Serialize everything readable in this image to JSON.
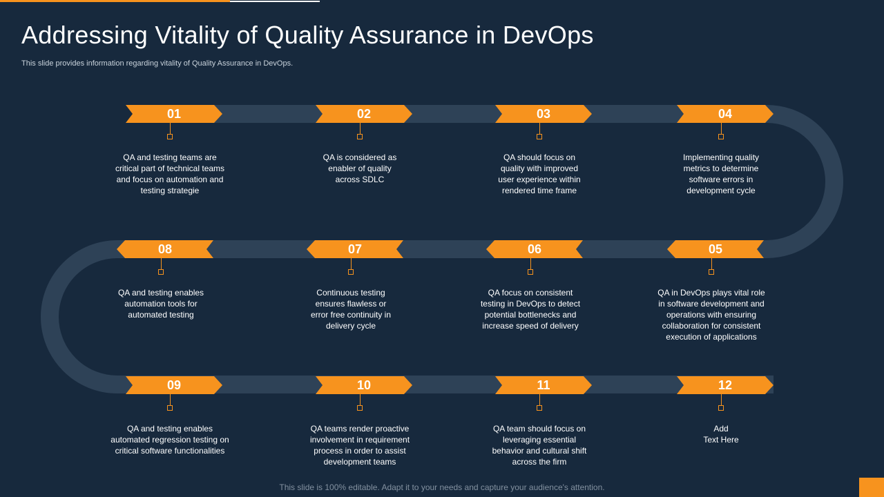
{
  "slide": {
    "title": "Addressing Vitality of Quality Assurance in DevOps",
    "subtitle": "This slide provides information regarding vitality of Quality Assurance in DevOps.",
    "footer": "This slide is 100% editable. Adapt it to your needs and capture your audience's attention."
  },
  "colors": {
    "background": "#17293d",
    "accent": "#f7931e",
    "track": "#2e4257",
    "text": "#ffffff"
  },
  "steps": [
    {
      "num": "01",
      "text": "QA and testing teams are\ncritical part of technical teams\nand focus on automation and\ntesting strategie"
    },
    {
      "num": "02",
      "text": "QA is considered as\nenabler of quality\nacross SDLC"
    },
    {
      "num": "03",
      "text": "QA should focus on\nquality with improved\nuser experience within\nrendered time frame"
    },
    {
      "num": "04",
      "text": "Implementing quality\nmetrics to determine\nsoftware errors in\ndevelopment cycle"
    },
    {
      "num": "05",
      "text": "QA in DevOps plays vital role\nin software development and\noperations with ensuring\ncollaboration for consistent\nexecution of applications"
    },
    {
      "num": "06",
      "text": "QA focus on consistent\ntesting in DevOps to detect\npotential bottlenecks and\nincrease speed of delivery"
    },
    {
      "num": "07",
      "text": "Continuous testing\nensures flawless or\nerror free continuity in\ndelivery cycle"
    },
    {
      "num": "08",
      "text": "QA and testing enables\nautomation tools for\nautomated testing"
    },
    {
      "num": "09",
      "text": "QA and testing enables\nautomated regression testing on\ncritical software functionalities"
    },
    {
      "num": "10",
      "text": "QA teams render proactive\ninvolvement in requirement\nprocess in order to assist\ndevelopment teams"
    },
    {
      "num": "11",
      "text": "QA team should focus on\nleveraging essential\nbehavior and cultural shift\nacross the firm"
    },
    {
      "num": "12",
      "text": "Add\nText Here"
    }
  ]
}
